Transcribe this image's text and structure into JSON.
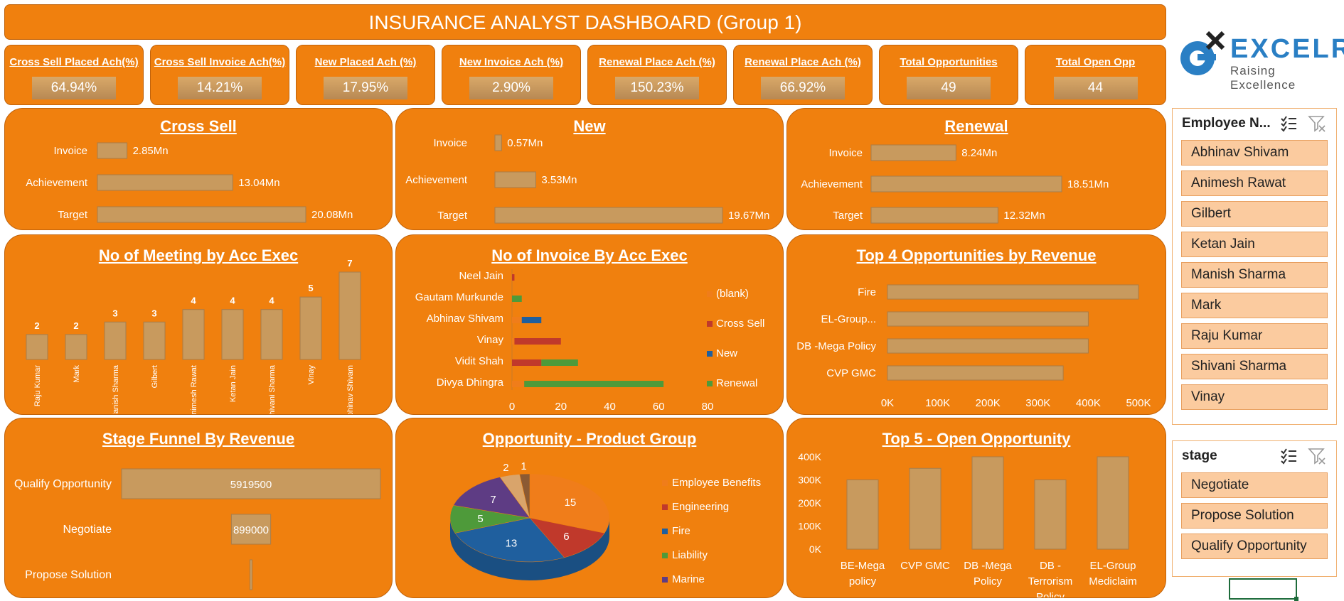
{
  "header": {
    "title": "INSURANCE ANALYST DASHBOARD (Group 1)"
  },
  "kpis": [
    {
      "label": "Cross Sell Placed Ach(%)",
      "value": "64.94%"
    },
    {
      "label": "Cross Sell Invoice Ach(%)",
      "value": "14.21%"
    },
    {
      "label": "New Placed Ach (%)",
      "value": "17.95%"
    },
    {
      "label": "New Invoice Ach (%)",
      "value": "2.90%"
    },
    {
      "label": "Renewal Place Ach (%)",
      "value": "150.23%"
    },
    {
      "label": "Renewal Place Ach (%)",
      "value": "66.92%"
    },
    {
      "label": "Total Opportunities",
      "value": "49"
    },
    {
      "label": "Total Open Opp",
      "value": "44"
    }
  ],
  "logo": {
    "brand": "EXCELR",
    "tagline": "Raising Excellence"
  },
  "colors": {
    "panel": "#f0800e",
    "bar": "#c89a5e",
    "series_blank": "#f07d1a",
    "series_cross_sell": "#c0392b",
    "series_new": "#1f5f9e",
    "series_renewal": "#4e9a3a",
    "series_marine": "#5e3c84"
  },
  "slicers": [
    {
      "title": "Employee N...",
      "items": [
        "Abhinav Shivam",
        "Animesh Rawat",
        "Gilbert",
        "Ketan Jain",
        "Manish Sharma",
        "Mark",
        "Raju Kumar",
        "Shivani Sharma",
        "Vinay"
      ],
      "icons": [
        "multi-select-icon",
        "clear-filter-icon"
      ]
    },
    {
      "title": "stage",
      "items": [
        "Negotiate",
        "Propose Solution",
        "Qualify Opportunity"
      ],
      "icons": [
        "multi-select-icon",
        "clear-filter-icon"
      ]
    }
  ],
  "chart_data": [
    {
      "id": "cross_sell",
      "type": "bar",
      "orientation": "horizontal",
      "title": "Cross Sell",
      "categories": [
        "Invoice",
        "Achievement",
        "Target"
      ],
      "values": [
        2.85,
        13.04,
        20.08
      ],
      "labels": [
        "2.85Mn",
        "13.04Mn",
        "20.08Mn"
      ],
      "xlim": [
        0,
        20.08
      ]
    },
    {
      "id": "new",
      "type": "bar",
      "orientation": "horizontal",
      "title": "New",
      "categories": [
        "Invoice",
        "Achievement",
        "Target"
      ],
      "values": [
        0.57,
        3.53,
        19.67
      ],
      "labels": [
        "0.57Mn",
        "3.53Mn",
        "19.67Mn"
      ],
      "xlim": [
        0,
        19.67
      ]
    },
    {
      "id": "renewal",
      "type": "bar",
      "orientation": "horizontal",
      "title": "Renewal",
      "categories": [
        "Invoice",
        "Achievement",
        "Target"
      ],
      "values": [
        8.24,
        18.51,
        12.32
      ],
      "labels": [
        "8.24Mn",
        "18.51Mn",
        "12.32Mn"
      ],
      "xlim": [
        0,
        18.51
      ]
    },
    {
      "id": "meetings",
      "type": "bar",
      "orientation": "vertical",
      "title": "No of Meeting by Acc Exec",
      "categories": [
        "Raju Kumar",
        "Mark",
        "Manish Sharma",
        "Gilbert",
        "Animesh Rawat",
        "Ketan Jain",
        "Shivani Sharma",
        "Vinay",
        "Abhinav Shivam"
      ],
      "values": [
        2,
        2,
        3,
        3,
        4,
        4,
        4,
        5,
        7
      ],
      "ylim": [
        0,
        7
      ]
    },
    {
      "id": "invoices",
      "type": "bar",
      "orientation": "horizontal",
      "stacked": true,
      "title": "No of Invoice By Acc Exec",
      "categories": [
        "Divya Dhingra",
        "Vidit Shah",
        "Vinay",
        "Abhinav Shivam",
        "Gautam Murkunde",
        "Neel Jain"
      ],
      "tick_labels": [
        "Neel Jain",
        "Gautam Murkunde",
        "Abhinav Shivam",
        "Vinay",
        "Vidit Shah",
        "Divya Dhingra"
      ],
      "series": [
        {
          "name": "(blank)",
          "values": [
            5,
            0,
            1,
            4,
            0,
            0
          ]
        },
        {
          "name": "Cross Sell",
          "values": [
            0,
            12,
            19,
            0,
            0,
            1
          ]
        },
        {
          "name": "New",
          "values": [
            0,
            0,
            0,
            8,
            0,
            0
          ]
        },
        {
          "name": "Renewal",
          "values": [
            57,
            15,
            0,
            0,
            4,
            0
          ]
        }
      ],
      "xlim": [
        0,
        80
      ],
      "xticks": [
        "0",
        "20",
        "40",
        "60",
        "80"
      ]
    },
    {
      "id": "top4",
      "type": "bar",
      "orientation": "horizontal",
      "title": "Top 4 Opportunities by Revenue",
      "categories": [
        "Fire",
        "EL-Group...",
        "DB -Mega Policy",
        "CVP GMC"
      ],
      "values": [
        500000,
        400000,
        400000,
        350000
      ],
      "xlim": [
        0,
        500000
      ],
      "xticks": [
        "0K",
        "100K",
        "200K",
        "300K",
        "400K",
        "500K"
      ]
    },
    {
      "id": "funnel",
      "type": "bar",
      "orientation": "horizontal",
      "title": "Stage Funnel By Revenue",
      "categories": [
        "Qualify Opportunity",
        "Negotiate",
        "Propose Solution"
      ],
      "values": [
        5919500,
        899000,
        50000
      ],
      "labels": [
        "5919500",
        "899000",
        ""
      ]
    },
    {
      "id": "product_group",
      "type": "pie",
      "title": "Opportunity - Product Group",
      "legend": [
        "Employee Benefits",
        "Engineering",
        "Fire",
        "Liability",
        "Marine"
      ],
      "slices": [
        {
          "label": "15",
          "value": 15
        },
        {
          "label": "6",
          "value": 6
        },
        {
          "label": "13",
          "value": 13
        },
        {
          "label": "5",
          "value": 5
        },
        {
          "label": "7",
          "value": 7
        },
        {
          "label": "2",
          "value": 2
        },
        {
          "label": "1",
          "value": 1
        }
      ]
    },
    {
      "id": "top5",
      "type": "bar",
      "orientation": "vertical",
      "title": "Top 5 - Open Opportunity",
      "categories": [
        "BE-Mega policy",
        "CVP GMC",
        "DB -Mega Policy",
        "DB - Terrorism Policy",
        "EL-Group Mediclaim"
      ],
      "values": [
        300000,
        350000,
        400000,
        300000,
        400000
      ],
      "ylim": [
        0,
        400000
      ],
      "yticks": [
        "0K",
        "100K",
        "200K",
        "300K",
        "400K"
      ]
    }
  ]
}
